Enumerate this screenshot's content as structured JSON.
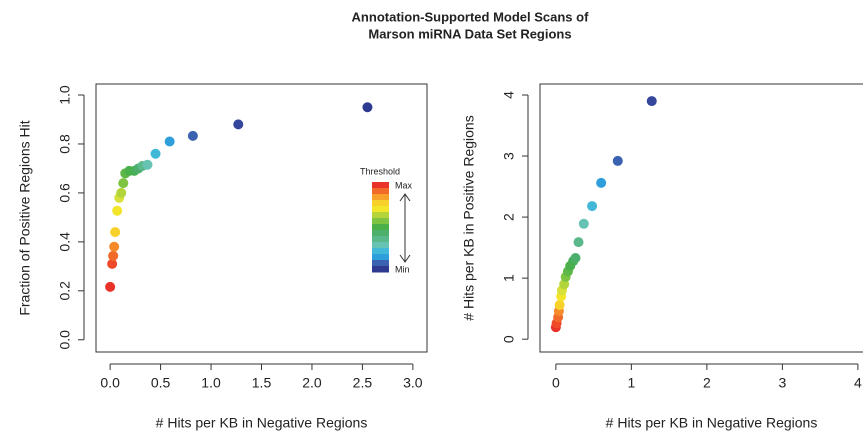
{
  "title": [
    "Annotation-Supported Model Scans of",
    "Marson miRNA Data Set Regions"
  ],
  "chart_data": [
    {
      "type": "scatter",
      "xlabel": "# Hits per KB in Negative Regions",
      "ylabel": "Fraction of Positive Regions Hit",
      "xlim": [
        -0.14,
        3.14
      ],
      "ylim": [
        -0.05,
        1.045
      ],
      "xticks": [
        {
          "value": 0,
          "label": "0.0"
        },
        0.5,
        {
          "value": 1,
          "label": "1.0"
        },
        1.5,
        {
          "value": 2,
          "label": "2.0"
        },
        2.5,
        {
          "value": 3,
          "label": "3.0"
        }
      ],
      "yticks": [
        {
          "value": 0,
          "label": "0.0"
        },
        0.2,
        0.4,
        0.6,
        0.8,
        {
          "value": 1,
          "label": "1.0"
        }
      ],
      "x": [
        0,
        0.02,
        0.03,
        0.04,
        0.05,
        0.07,
        0.09,
        0.11,
        0.13,
        0.15,
        0.19,
        0.24,
        0.28,
        0.32,
        0.37,
        0.45,
        0.59,
        0.82,
        1.27,
        2.55
      ],
      "values": [
        0.216,
        0.31,
        0.343,
        0.38,
        0.44,
        0.527,
        0.58,
        0.6,
        0.64,
        0.68,
        0.69,
        0.69,
        0.7,
        0.71,
        0.715,
        0.76,
        0.81,
        0.833,
        0.88,
        0.95
      ],
      "colors": [
        "#e8322a",
        "#ee4a2a",
        "#f26a2a",
        "#f58a2a",
        "#f7d02a",
        "#f2e52a",
        "#d8e03a",
        "#b4d43c",
        "#7ec442",
        "#5db848",
        "#4cb04a",
        "#48b054",
        "#4cb06c",
        "#5ab88a",
        "#66c2b2",
        "#42b8d8",
        "#2f9fdc",
        "#3a62b0",
        "#34479c",
        "#2e3a90"
      ],
      "colorbar": {
        "title": "Threshold",
        "max_label": "Max",
        "min_label": "Min",
        "colors": [
          "#e8322a",
          "#f26a2a",
          "#f7a02a",
          "#f7d02a",
          "#f2e52a",
          "#b4d43c",
          "#7ec442",
          "#4cb04a",
          "#4cb06c",
          "#5ab88a",
          "#66c2b2",
          "#42b8d8",
          "#2f9fdc",
          "#3a62b0",
          "#2e3a90"
        ]
      }
    },
    {
      "type": "scatter",
      "xlabel": "# Hits per KB in Negative Regions",
      "ylabel": "# Hits per KB in Positive Regions",
      "xlim": [
        -0.21,
        4.2
      ],
      "ylim": [
        -0.21,
        4.18
      ],
      "xticks": [
        0,
        1,
        2,
        3,
        4
      ],
      "yticks": [
        0,
        1,
        2,
        3,
        4
      ],
      "x": [
        0,
        0.01,
        0.03,
        0.04,
        0.05,
        0.07,
        0.08,
        0.11,
        0.13,
        0.16,
        0.19,
        0.23,
        0.26,
        0.3,
        0.37,
        0.48,
        0.6,
        0.82,
        1.27
      ],
      "values": [
        0.197,
        0.26,
        0.36,
        0.46,
        0.56,
        0.7,
        0.8,
        0.9,
        1.02,
        1.11,
        1.2,
        1.28,
        1.33,
        1.59,
        1.89,
        2.18,
        2.56,
        2.92,
        3.9
      ],
      "colors": [
        "#e8322a",
        "#ee4a2a",
        "#f26a2a",
        "#f58a2a",
        "#f7d02a",
        "#f2e52a",
        "#d8e03a",
        "#b4d43c",
        "#7ec442",
        "#5db848",
        "#4cb04a",
        "#48b054",
        "#4cb06c",
        "#5ab88a",
        "#66c2b2",
        "#42b8d8",
        "#2f9fdc",
        "#3a62b0",
        "#34479c"
      ]
    }
  ]
}
